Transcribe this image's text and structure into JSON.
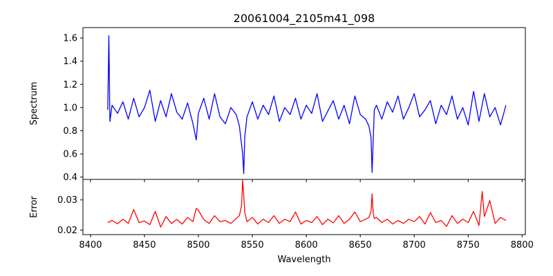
{
  "chart_data": [
    {
      "type": "line",
      "title": "20061004_2105m41_098",
      "xlabel": "",
      "ylabel": "Spectrum",
      "xlim": [
        8393,
        8803
      ],
      "ylim": [
        0.38,
        1.69
      ],
      "xticks": [
        8400,
        8450,
        8500,
        8550,
        8600,
        8650,
        8700,
        8750,
        8800
      ],
      "yticks": [
        0.4,
        0.6,
        0.8,
        1.0,
        1.2,
        1.4,
        1.6
      ],
      "ytick_labels": [
        "0.4",
        "0.6",
        "0.8",
        "1.0",
        "1.2",
        "1.4",
        "1.6"
      ],
      "series": [
        {
          "color": "#0000ff",
          "x": [
            8416,
            8417,
            8418,
            8420,
            8425,
            8430,
            8435,
            8440,
            8445,
            8450,
            8455,
            8460,
            8465,
            8470,
            8475,
            8480,
            8485,
            8490,
            8495,
            8498,
            8500,
            8505,
            8510,
            8515,
            8520,
            8525,
            8530,
            8535,
            8538,
            8540,
            8541,
            8542,
            8543,
            8545,
            8550,
            8555,
            8560,
            8565,
            8570,
            8575,
            8580,
            8585,
            8590,
            8595,
            8600,
            8605,
            8610,
            8615,
            8620,
            8625,
            8630,
            8635,
            8640,
            8645,
            8650,
            8655,
            8658,
            8660,
            8661,
            8662,
            8663,
            8665,
            8670,
            8675,
            8680,
            8685,
            8690,
            8695,
            8700,
            8705,
            8710,
            8715,
            8720,
            8725,
            8730,
            8735,
            8740,
            8745,
            8750,
            8755,
            8760,
            8765,
            8770,
            8775,
            8780,
            8785
          ],
          "y": [
            0.98,
            1.62,
            0.88,
            1.02,
            0.95,
            1.05,
            0.9,
            1.08,
            0.92,
            1.0,
            1.15,
            0.88,
            1.06,
            0.92,
            1.12,
            0.96,
            0.9,
            1.04,
            0.86,
            0.72,
            0.95,
            1.08,
            0.9,
            1.12,
            0.92,
            0.86,
            1.0,
            0.94,
            0.84,
            0.68,
            0.6,
            0.43,
            0.75,
            0.92,
            1.05,
            0.9,
            1.02,
            0.94,
            1.1,
            0.88,
            1.0,
            0.94,
            1.08,
            0.9,
            1.02,
            0.95,
            1.12,
            0.88,
            0.97,
            1.06,
            0.9,
            1.02,
            0.86,
            1.1,
            0.94,
            0.9,
            0.84,
            0.74,
            0.44,
            0.72,
            0.98,
            1.02,
            0.9,
            1.05,
            0.96,
            1.1,
            0.9,
            1.0,
            1.12,
            0.92,
            0.98,
            1.06,
            0.86,
            1.02,
            0.94,
            1.1,
            0.9,
            1.0,
            0.85,
            1.14,
            0.88,
            1.12,
            0.92,
            1.0,
            0.85,
            1.02
          ]
        }
      ]
    },
    {
      "type": "line",
      "title": "",
      "xlabel": "Wavelength",
      "ylabel": "Error",
      "xlim": [
        8393,
        8803
      ],
      "ylim": [
        0.0185,
        0.0368
      ],
      "xticks": [
        8400,
        8450,
        8500,
        8550,
        8600,
        8650,
        8700,
        8750,
        8800
      ],
      "xtick_labels": [
        "8400",
        "8450",
        "8500",
        "8550",
        "8600",
        "8650",
        "8700",
        "8750",
        "8800"
      ],
      "yticks": [
        0.02,
        0.03
      ],
      "ytick_labels": [
        "0.02",
        "0.03"
      ],
      "series": [
        {
          "color": "#ff0000",
          "x": [
            8416,
            8420,
            8425,
            8430,
            8435,
            8440,
            8445,
            8450,
            8455,
            8460,
            8465,
            8470,
            8475,
            8480,
            8485,
            8490,
            8495,
            8498,
            8500,
            8505,
            8510,
            8515,
            8520,
            8525,
            8530,
            8535,
            8538,
            8540,
            8541,
            8542,
            8543,
            8545,
            8550,
            8555,
            8560,
            8565,
            8570,
            8575,
            8580,
            8585,
            8590,
            8595,
            8600,
            8605,
            8610,
            8615,
            8620,
            8625,
            8630,
            8635,
            8640,
            8645,
            8650,
            8655,
            8658,
            8660,
            8661,
            8662,
            8663,
            8665,
            8670,
            8675,
            8680,
            8685,
            8690,
            8695,
            8700,
            8705,
            8710,
            8715,
            8720,
            8725,
            8730,
            8735,
            8740,
            8745,
            8750,
            8755,
            8760,
            8763,
            8765,
            8770,
            8775,
            8780,
            8785
          ],
          "y": [
            0.0225,
            0.0232,
            0.0221,
            0.0236,
            0.0222,
            0.0268,
            0.0225,
            0.023,
            0.0218,
            0.0262,
            0.021,
            0.0245,
            0.0222,
            0.0235,
            0.022,
            0.0242,
            0.0228,
            0.0272,
            0.0265,
            0.0235,
            0.0222,
            0.0248,
            0.0228,
            0.0232,
            0.0222,
            0.0238,
            0.0248,
            0.0282,
            0.0365,
            0.0318,
            0.0258,
            0.0228,
            0.0242,
            0.022,
            0.0236,
            0.0225,
            0.0248,
            0.0222,
            0.0236,
            0.0228,
            0.026,
            0.022,
            0.0232,
            0.0225,
            0.0245,
            0.0218,
            0.0236,
            0.0224,
            0.0248,
            0.0222,
            0.0236,
            0.026,
            0.0228,
            0.0236,
            0.0242,
            0.0262,
            0.032,
            0.0255,
            0.0238,
            0.0242,
            0.0225,
            0.0236,
            0.022,
            0.0232,
            0.0222,
            0.0236,
            0.0228,
            0.0245,
            0.022,
            0.0258,
            0.0225,
            0.0232,
            0.0212,
            0.0248,
            0.0222,
            0.0236,
            0.0225,
            0.0262,
            0.0215,
            0.0328,
            0.0245,
            0.0298,
            0.0222,
            0.0242,
            0.0232
          ]
        }
      ]
    }
  ]
}
